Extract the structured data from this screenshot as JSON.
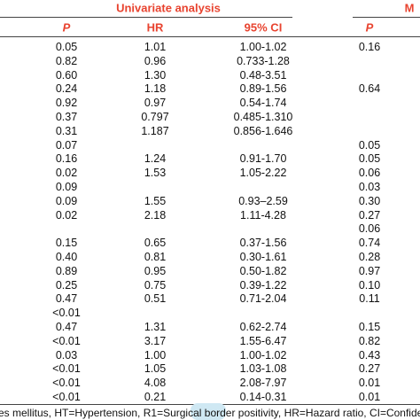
{
  "table": {
    "group_headers": [
      "Univariate analysis",
      "M"
    ],
    "headers": [
      "P",
      "HR",
      "95% CI",
      "P"
    ],
    "rows": [
      [
        "0.05",
        "1.01",
        "1.00-1.02",
        "0.16"
      ],
      [
        "0.82",
        "0.96",
        "0.733-1.28",
        null
      ],
      [
        "0.60",
        "1.30",
        "0.48-3.51",
        null
      ],
      [
        "0.24",
        "1.18",
        "0.89-1.56",
        "0.64"
      ],
      [
        "0.92",
        "0.97",
        "0.54-1.74",
        null
      ],
      [
        "0.37",
        "0.797",
        "0.485-1.310",
        null
      ],
      [
        "0.31",
        "1.187",
        "0.856-1.646",
        null
      ],
      [
        "0.07",
        null,
        null,
        "0.05"
      ],
      [
        "0.16",
        "1.24",
        "0.91-1.70",
        "0.05"
      ],
      [
        "0.02",
        "1.53",
        "1.05-2.22",
        "0.06"
      ],
      [
        "0.09",
        null,
        null,
        "0.03"
      ],
      [
        "0.09",
        "1.55",
        "0.93–2.59",
        "0.30"
      ],
      [
        "0.02",
        "2.18",
        "1.11-4.28",
        "0.27"
      ],
      [
        null,
        null,
        null,
        "0.06"
      ],
      [
        "0.15",
        "0.65",
        "0.37-1.56",
        "0.74"
      ],
      [
        "0.40",
        "0.81",
        "0.30-1.61",
        "0.28"
      ],
      [
        "0.89",
        "0.95",
        "0.50-1.82",
        "0.97"
      ],
      [
        "0.25",
        "0.75",
        "0.39-1.22",
        "0.10"
      ],
      [
        "0.47",
        "0.51",
        "0.71-2.04",
        "0.11"
      ],
      [
        "<0.01",
        null,
        null,
        null
      ],
      [
        "0.47",
        "1.31",
        "0.62-2.74",
        "0.15"
      ],
      [
        "<0.01",
        "3.17",
        "1.55-6.47",
        "0.82"
      ],
      [
        "0.03",
        "1.00",
        "1.00-1.02",
        "0.43"
      ],
      [
        "<0.01",
        "1.05",
        "1.03-1.08",
        "0.27"
      ],
      [
        "<0.01",
        "4.08",
        "2.08-7.97",
        "0.01"
      ],
      [
        "<0.01",
        "0.21",
        "0.14-0.31",
        "0.01"
      ]
    ],
    "footnote": "es mellitus, HT=Hypertension, R1=Surgical border positivity, HR=Hazard ratio, CI=Confiden"
  }
}
